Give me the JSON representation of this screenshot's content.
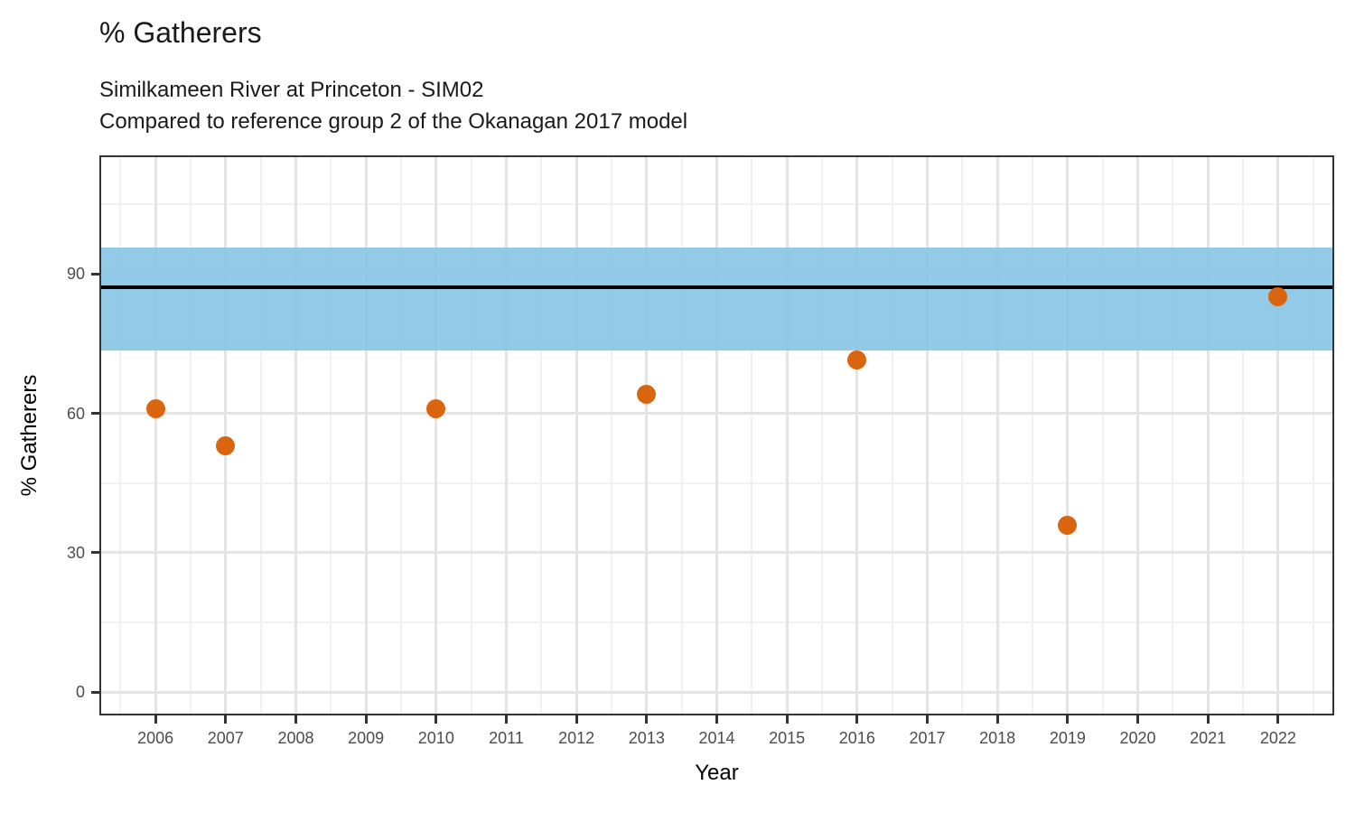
{
  "header": {
    "title": "% Gatherers",
    "subtitle_line1": "Similkameen River at Princeton - SIM02",
    "subtitle_line2": "Compared to reference group 2 of the Okanagan 2017 model"
  },
  "chart_data": {
    "type": "scatter",
    "title": "% Gatherers",
    "subtitle": [
      "Similkameen River at Princeton - SIM02",
      "Compared to reference group 2 of the Okanagan 2017 model"
    ],
    "xlabel": "Year",
    "ylabel": "% Gatherers",
    "x_ticks": [
      2006,
      2007,
      2008,
      2009,
      2010,
      2011,
      2012,
      2013,
      2014,
      2015,
      2016,
      2017,
      2018,
      2019,
      2020,
      2021,
      2022
    ],
    "y_ticks": [
      0,
      30,
      60,
      90
    ],
    "xlim": [
      2005.2,
      2022.8
    ],
    "ylim": [
      -5,
      115.5
    ],
    "grid": {
      "enabled": true,
      "y_minor": [
        15,
        45,
        75,
        105
      ],
      "x_minor": [
        2005.5,
        2006.5,
        2007.5,
        2008.5,
        2009.5,
        2010.5,
        2011.5,
        2012.5,
        2013.5,
        2014.5,
        2015.5,
        2016.5,
        2017.5,
        2018.5,
        2019.5,
        2020.5,
        2021.5,
        2022.5
      ]
    },
    "points": [
      {
        "year": 2006,
        "value": 61
      },
      {
        "year": 2007,
        "value": 53
      },
      {
        "year": 2010,
        "value": 61
      },
      {
        "year": 2013,
        "value": 64
      },
      {
        "year": 2016,
        "value": 71.5
      },
      {
        "year": 2019,
        "value": 36
      },
      {
        "year": 2022,
        "value": 85
      }
    ],
    "reference_line": 87.2,
    "reference_band": {
      "lower": 73.5,
      "upper": 95.7
    },
    "colors": {
      "point": "#D9650F",
      "band": "#8AC6E6",
      "band_opacity": 0.93,
      "reference_line": "#000000",
      "axis": "#333333",
      "tick_label": "#4D4D4D",
      "grid_major": "#E4E4E4",
      "grid_minor": "#F1F1F1"
    },
    "legend": null
  }
}
